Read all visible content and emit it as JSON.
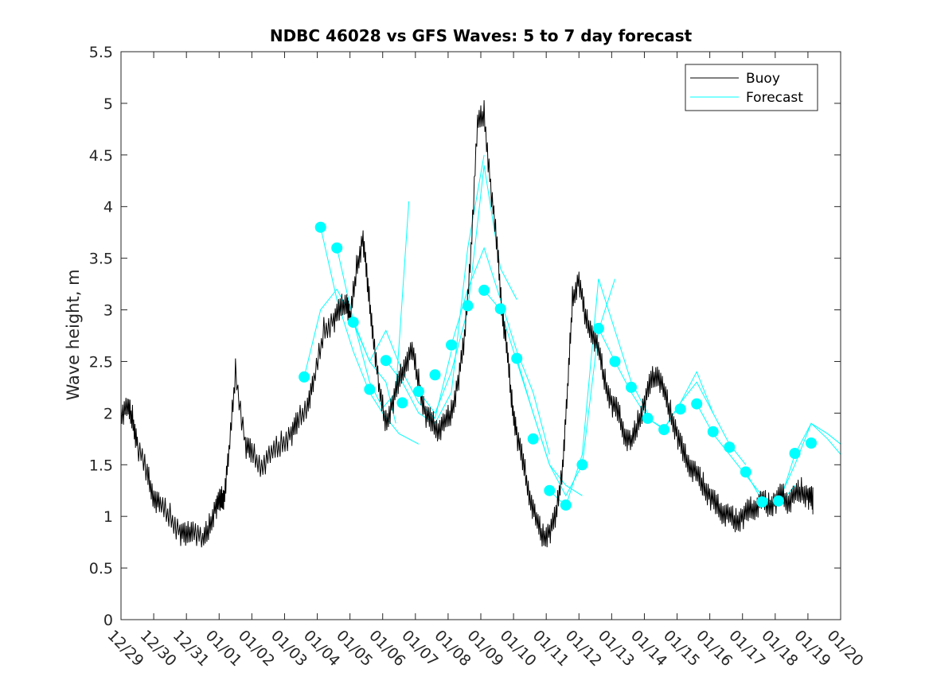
{
  "chart_data": {
    "type": "line",
    "title": "NDBC 46028 vs GFS Waves: 5 to 7 day forecast",
    "xlabel": "",
    "ylabel": "Wave height, m",
    "xlim_days": [
      0,
      22
    ],
    "ylim": [
      0,
      5.5
    ],
    "yticks": [
      0,
      0.5,
      1,
      1.5,
      2,
      2.5,
      3,
      3.5,
      4,
      4.5,
      5,
      5.5
    ],
    "ytick_labels": [
      "0",
      "0.5",
      "1",
      "1.5",
      "2",
      "2.5",
      "3",
      "3.5",
      "4",
      "4.5",
      "5",
      "5.5"
    ],
    "xtick_labels": [
      "12/29",
      "12/30",
      "12/31",
      "01/01",
      "01/02",
      "01/03",
      "01/04",
      "01/05",
      "01/06",
      "01/07",
      "01/08",
      "01/09",
      "01/10",
      "01/11",
      "01/12",
      "01/13",
      "01/14",
      "01/15",
      "01/16",
      "01/17",
      "01/18",
      "01/19",
      "01/20"
    ],
    "colors": {
      "buoy": "#000000",
      "forecast": "#00ffff",
      "axes": "#262626"
    },
    "legend": {
      "position": "top-right",
      "entries": [
        "Buoy",
        "Forecast"
      ]
    },
    "series": [
      {
        "name": "Buoy",
        "x": [
          0,
          0.2,
          0.35,
          0.5,
          0.8,
          1.0,
          1.2,
          1.5,
          1.8,
          2.0,
          2.2,
          2.5,
          2.7,
          2.9,
          3.05,
          3.15,
          3.3,
          3.5,
          3.8,
          4.0,
          4.3,
          4.6,
          4.9,
          5.2,
          5.4,
          5.7,
          5.9,
          6.2,
          6.5,
          6.7,
          6.9,
          7.0,
          7.2,
          7.4,
          7.55,
          7.7,
          7.9,
          8.1,
          8.3,
          8.5,
          8.7,
          8.9,
          9.1,
          9.3,
          9.5,
          9.7,
          9.9,
          10.1,
          10.3,
          10.5,
          10.7,
          10.9,
          11.1,
          11.3,
          11.5,
          11.65,
          11.8,
          11.95,
          12.1,
          12.3,
          12.5,
          12.7,
          12.9,
          13.1,
          13.3,
          13.5,
          13.65,
          13.8,
          14.0,
          14.2,
          14.4,
          14.6,
          14.8,
          15.0,
          15.2,
          15.4,
          15.6,
          15.8,
          16.0,
          16.2,
          16.4,
          16.6,
          16.8,
          17.0,
          17.2,
          17.4,
          17.6,
          17.8,
          18.0,
          18.2,
          18.4,
          18.6,
          18.8,
          19.0,
          19.2,
          19.4,
          19.6,
          19.8,
          20.0,
          20.2,
          20.4,
          20.6,
          20.8,
          21.0,
          21.15
        ],
        "y": [
          2.0,
          2.05,
          1.95,
          1.7,
          1.4,
          1.2,
          1.1,
          1.0,
          0.85,
          0.8,
          0.9,
          0.75,
          0.9,
          1.1,
          1.15,
          1.2,
          1.6,
          2.4,
          1.7,
          1.6,
          1.5,
          1.6,
          1.7,
          1.8,
          1.9,
          2.1,
          2.3,
          2.8,
          2.9,
          3.0,
          3.1,
          2.9,
          3.4,
          3.7,
          3.2,
          2.8,
          2.2,
          1.9,
          2.1,
          2.3,
          2.5,
          2.6,
          2.3,
          2.0,
          1.9,
          1.85,
          1.9,
          2.0,
          2.3,
          2.7,
          3.6,
          4.8,
          4.9,
          4.2,
          3.6,
          3.0,
          2.6,
          2.1,
          1.8,
          1.5,
          1.2,
          0.95,
          0.8,
          0.85,
          1.0,
          1.5,
          2.2,
          3.1,
          3.3,
          2.9,
          2.8,
          2.6,
          2.3,
          2.1,
          2.0,
          1.8,
          1.7,
          1.9,
          2.1,
          2.3,
          2.4,
          2.2,
          2.0,
          1.8,
          1.6,
          1.5,
          1.4,
          1.3,
          1.2,
          1.1,
          1.05,
          1.0,
          0.95,
          1.0,
          1.05,
          1.1,
          1.15,
          1.1,
          1.15,
          1.2,
          1.15,
          1.2,
          1.25,
          1.2,
          1.15
        ]
      },
      {
        "name": "Forecast",
        "markers_x": [
          5.6,
          6.1,
          6.6,
          7.1,
          7.6,
          8.1,
          8.6,
          9.1,
          9.6,
          10.1,
          10.6,
          11.1,
          11.6,
          12.1,
          12.6,
          13.1,
          13.6,
          14.1,
          14.6,
          15.1,
          15.6,
          16.1,
          16.6,
          17.1,
          17.6,
          18.1,
          18.6,
          19.1,
          19.6,
          20.1,
          20.6,
          21.1
        ],
        "markers_y": [
          2.35,
          3.8,
          3.6,
          2.88,
          2.23,
          2.51,
          2.1,
          2.21,
          2.37,
          2.66,
          3.04,
          3.19,
          3.01,
          2.53,
          1.75,
          1.25,
          1.11,
          1.5,
          2.82,
          2.5,
          2.25,
          1.95,
          1.84,
          2.04,
          2.09,
          1.82,
          1.67,
          1.43,
          1.14,
          1.15,
          1.61,
          1.71
        ],
        "traces": [
          {
            "x": [
              5.6,
              6.1,
              6.6,
              7.1,
              7.6,
              8.1,
              8.4
            ],
            "y": [
              2.35,
              3.0,
              3.2,
              2.9,
              2.5,
              2.3,
              1.9
            ]
          },
          {
            "x": [
              6.1,
              6.6,
              7.1,
              7.6,
              8.0,
              8.5,
              9.1
            ],
            "y": [
              3.8,
              3.1,
              2.6,
              2.2,
              2.0,
              1.8,
              1.7
            ]
          },
          {
            "x": [
              6.6,
              7.1,
              7.6,
              8.0,
              8.4,
              8.8
            ],
            "y": [
              3.6,
              2.9,
              2.3,
              2.05,
              2.2,
              4.05
            ]
          },
          {
            "x": [
              7.1,
              7.6,
              8.1,
              8.6,
              9.1,
              9.6,
              10.1
            ],
            "y": [
              2.88,
              2.5,
              2.8,
              2.4,
              2.1,
              1.95,
              2.6
            ]
          },
          {
            "x": [
              8.1,
              8.6,
              9.1,
              9.6,
              10.1,
              10.6,
              11.1
            ],
            "y": [
              2.51,
              2.3,
              2.0,
              1.9,
              2.2,
              3.6,
              4.5
            ]
          },
          {
            "x": [
              9.1,
              9.6,
              10.1,
              10.6,
              11.1,
              11.6,
              12.1
            ],
            "y": [
              2.21,
              2.0,
              2.4,
              3.0,
              4.4,
              3.4,
              3.1
            ]
          },
          {
            "x": [
              10.1,
              10.6,
              11.1,
              11.6,
              12.1,
              12.6,
              13.1
            ],
            "y": [
              2.66,
              3.2,
              3.6,
              3.1,
              2.6,
              2.2,
              1.6
            ]
          },
          {
            "x": [
              11.1,
              11.6,
              12.1,
              12.6,
              13.1,
              13.6,
              14.1
            ],
            "y": [
              3.19,
              3.0,
              2.5,
              2.0,
              1.5,
              1.3,
              1.2
            ]
          },
          {
            "x": [
              12.1,
              12.6,
              13.1,
              13.6,
              14.1,
              14.6,
              15.1
            ],
            "y": [
              2.53,
              2.0,
              1.5,
              1.2,
              1.5,
              2.8,
              3.3
            ]
          },
          {
            "x": [
              13.1,
              13.6,
              14.1,
              14.6,
              15.1,
              15.6,
              16.1
            ],
            "y": [
              1.25,
              1.1,
              1.6,
              3.3,
              2.8,
              2.3,
              2.0
            ]
          },
          {
            "x": [
              14.6,
              15.1,
              15.6,
              16.1,
              16.6,
              17.1,
              17.6,
              18.1
            ],
            "y": [
              2.82,
              2.5,
              2.2,
              1.95,
              1.85,
              2.1,
              2.3,
              2.0
            ]
          },
          {
            "x": [
              16.1,
              16.6,
              17.1,
              17.6,
              18.1,
              18.6,
              19.1
            ],
            "y": [
              1.95,
              1.84,
              2.1,
              2.4,
              2.0,
              1.7,
              1.5
            ]
          },
          {
            "x": [
              17.6,
              18.1,
              18.6,
              19.1,
              19.6,
              20.1,
              20.6
            ],
            "y": [
              2.09,
              1.8,
              1.6,
              1.4,
              1.2,
              1.1,
              1.3
            ]
          },
          {
            "x": [
              19.1,
              19.6,
              20.1,
              20.6,
              21.1,
              21.6,
              22.0
            ],
            "y": [
              1.43,
              1.15,
              1.1,
              1.6,
              1.9,
              1.75,
              1.6
            ]
          },
          {
            "x": [
              20.1,
              20.6,
              21.1,
              21.6,
              22.0
            ],
            "y": [
              1.15,
              1.5,
              1.9,
              1.8,
              1.7
            ]
          }
        ]
      }
    ]
  }
}
